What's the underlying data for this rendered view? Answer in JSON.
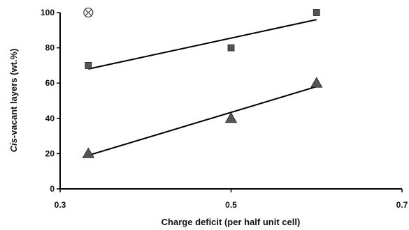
{
  "chart_data": {
    "type": "scatter",
    "xlabel": "Charge deficit (per half unit cell)",
    "ylabel": {
      "italic": "Cis",
      "rest": "-vacant layers (wt.%)"
    },
    "xlim": [
      0.3,
      0.7
    ],
    "ylim": [
      0,
      100
    ],
    "xticks": [
      "0.3",
      "0.5",
      "0.7"
    ],
    "yticks": [
      "0",
      "20",
      "40",
      "60",
      "80",
      "100"
    ],
    "grid": false,
    "legend": "none",
    "series": [
      {
        "marker": "square",
        "color": "#555555",
        "points": [
          {
            "x": 0.333,
            "y": 70
          },
          {
            "x": 0.5,
            "y": 80
          },
          {
            "x": 0.6,
            "y": 100
          }
        ],
        "trendline": [
          {
            "x": 0.333,
            "y": 68
          },
          {
            "x": 0.6,
            "y": 96
          }
        ]
      },
      {
        "marker": "triangle",
        "color": "#555555",
        "points": [
          {
            "x": 0.333,
            "y": 20
          },
          {
            "x": 0.5,
            "y": 40
          },
          {
            "x": 0.6,
            "y": 60
          }
        ],
        "trendline": [
          {
            "x": 0.333,
            "y": 19
          },
          {
            "x": 0.6,
            "y": 58
          }
        ]
      },
      {
        "marker": "circled-x",
        "color": "#444444",
        "points": [
          {
            "x": 0.333,
            "y": 100
          }
        ],
        "trendline": []
      }
    ]
  }
}
